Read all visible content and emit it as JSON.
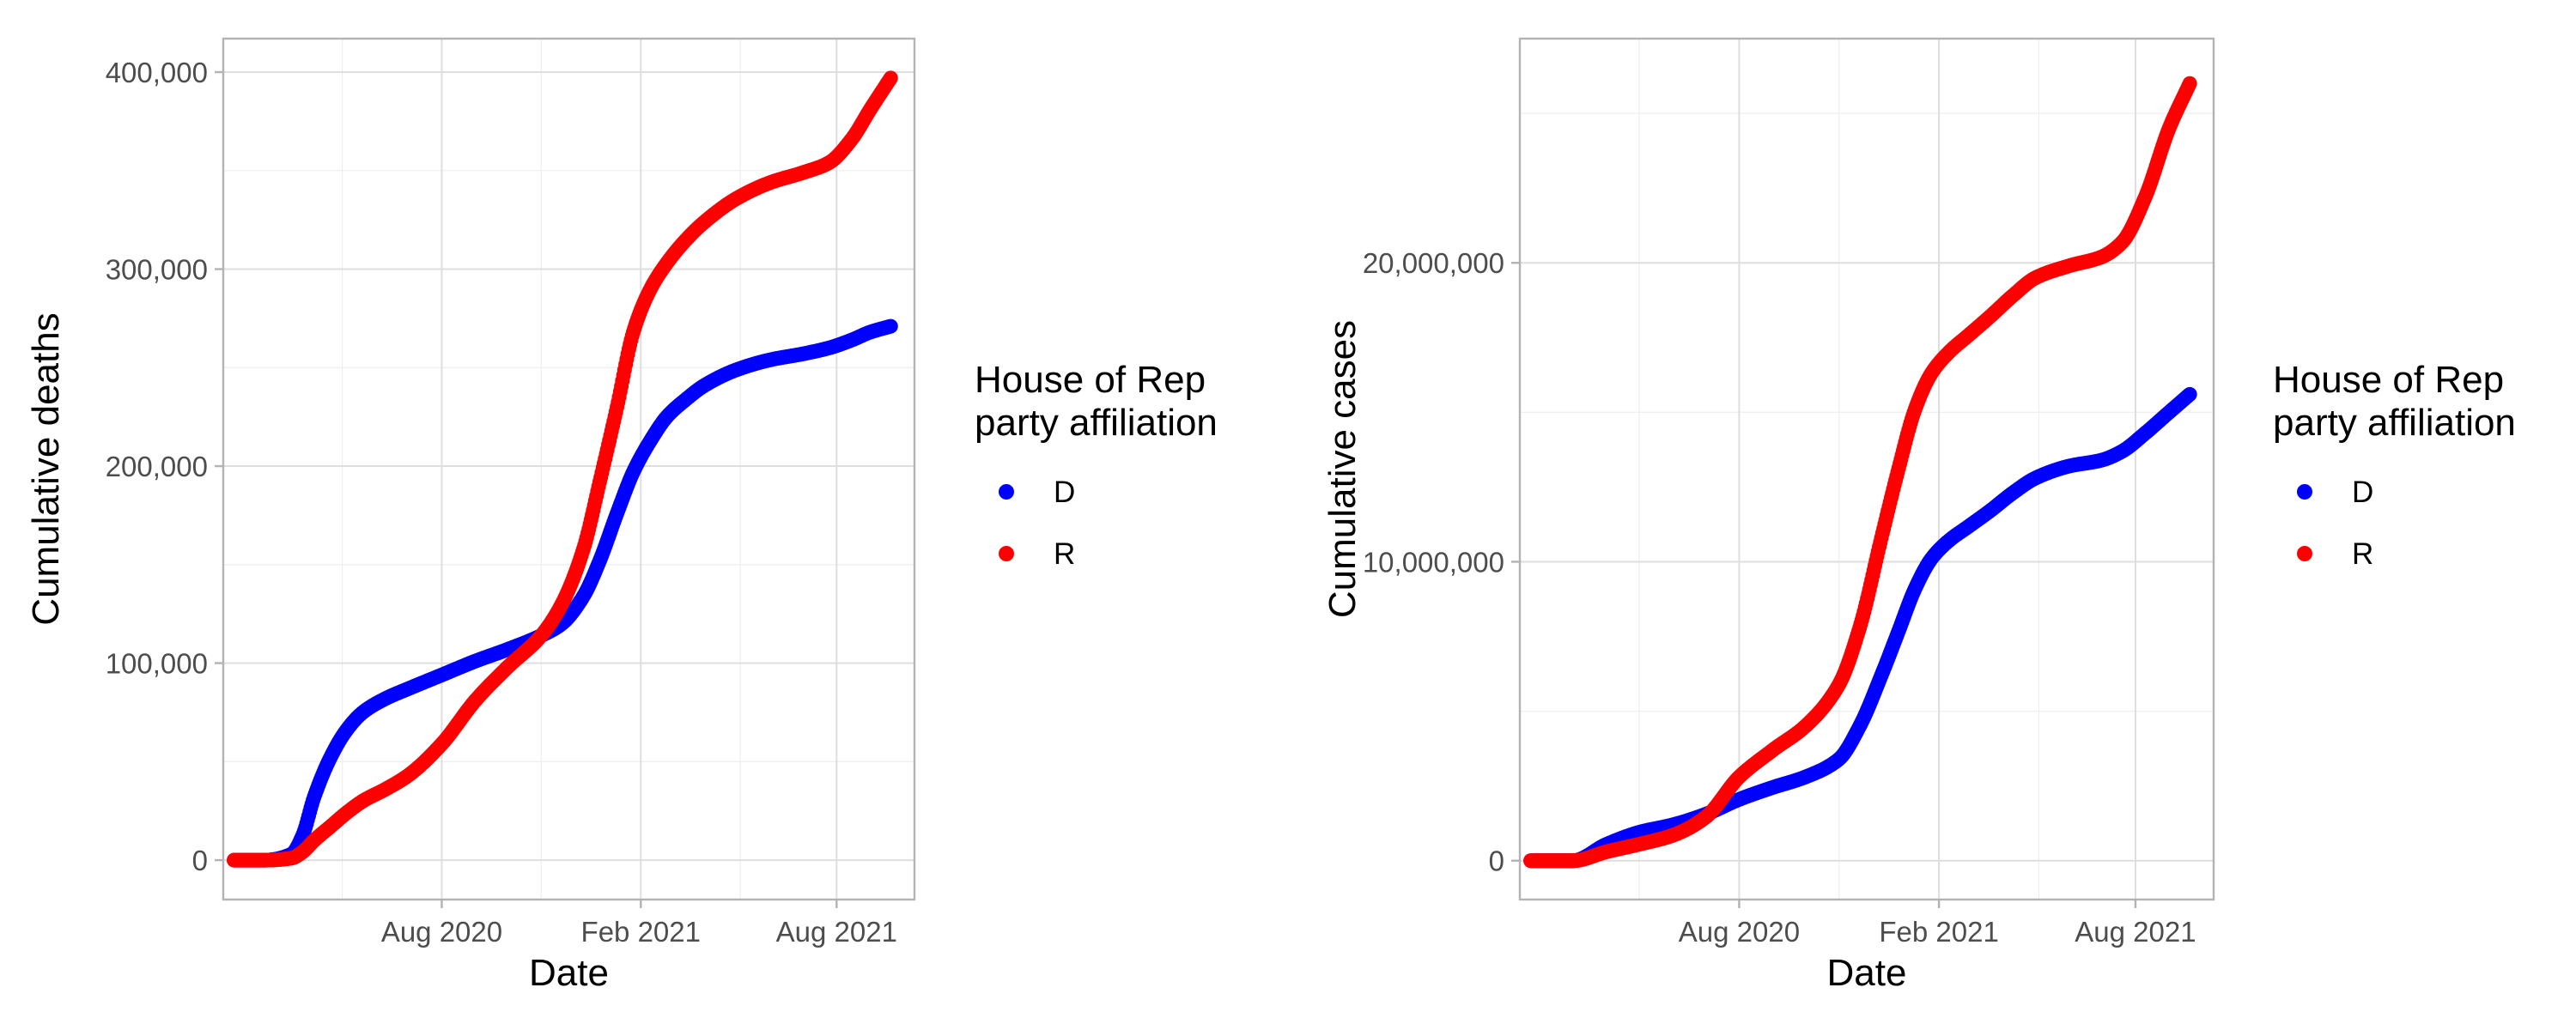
{
  "chart_data": [
    {
      "type": "scatter",
      "panel": "left",
      "xlabel": "Date",
      "ylabel": "Cumulative deaths",
      "xlim": [
        "2020-01-12",
        "2021-10-12"
      ],
      "ylim": [
        -20000,
        417000
      ],
      "x_ticks": [
        {
          "date": "2020-08-01",
          "label": "Aug 2020"
        },
        {
          "date": "2021-02-01",
          "label": "Feb 2021"
        },
        {
          "date": "2021-08-01",
          "label": "Aug 2021"
        }
      ],
      "y_ticks": [
        {
          "value": 0,
          "label": "0"
        },
        {
          "value": 100000,
          "label": "100,000"
        },
        {
          "value": 200000,
          "label": "200,000"
        },
        {
          "value": 300000,
          "label": "300,000"
        },
        {
          "value": 400000,
          "label": "400,000"
        }
      ],
      "legend": {
        "title_lines": [
          "House of Rep",
          "party affiliation"
        ],
        "position": "right"
      },
      "series": [
        {
          "name": "D",
          "color": "#0000ff",
          "x": [
            "2020-01-22",
            "2020-02-20",
            "2020-03-15",
            "2020-03-25",
            "2020-04-05",
            "2020-04-20",
            "2020-05-05",
            "2020-05-20",
            "2020-06-10",
            "2020-07-01",
            "2020-08-01",
            "2020-09-01",
            "2020-10-01",
            "2020-11-01",
            "2020-11-20",
            "2020-12-10",
            "2020-12-25",
            "2021-01-10",
            "2021-01-25",
            "2021-02-10",
            "2021-02-25",
            "2021-03-15",
            "2021-04-01",
            "2021-05-01",
            "2021-06-01",
            "2021-07-01",
            "2021-07-25",
            "2021-08-15",
            "2021-09-01",
            "2021-09-20"
          ],
          "y": [
            0,
            0,
            3000,
            12000,
            32000,
            52000,
            66000,
            75000,
            82000,
            87000,
            94000,
            101000,
            107000,
            114000,
            120000,
            134000,
            152000,
            176000,
            197000,
            213000,
            225000,
            234000,
            241000,
            249000,
            254000,
            257000,
            260000,
            264000,
            268000,
            271000
          ]
        },
        {
          "name": "R",
          "color": "#ff0000",
          "x": [
            "2020-01-22",
            "2020-02-20",
            "2020-03-15",
            "2020-03-25",
            "2020-04-05",
            "2020-04-20",
            "2020-05-05",
            "2020-05-20",
            "2020-06-10",
            "2020-07-01",
            "2020-08-01",
            "2020-09-01",
            "2020-10-01",
            "2020-11-01",
            "2020-11-20",
            "2020-12-10",
            "2020-12-25",
            "2021-01-10",
            "2021-01-25",
            "2021-02-10",
            "2021-02-25",
            "2021-03-15",
            "2021-04-01",
            "2021-05-01",
            "2021-06-01",
            "2021-07-01",
            "2021-07-25",
            "2021-08-15",
            "2021-09-01",
            "2021-09-20"
          ],
          "y": [
            0,
            0,
            1000,
            4000,
            10000,
            17000,
            24000,
            30000,
            36000,
            43000,
            59000,
            81000,
            98000,
            114000,
            130000,
            158000,
            192000,
            230000,
            268000,
            290000,
            303000,
            315000,
            324000,
            336000,
            344000,
            349000,
            354000,
            366000,
            381000,
            397000
          ]
        }
      ]
    },
    {
      "type": "scatter",
      "panel": "right",
      "xlabel": "Date",
      "ylabel": "Cumulative cases",
      "xlim": [
        "2020-01-12",
        "2021-10-12"
      ],
      "ylim": [
        -1300000,
        27500000
      ],
      "x_ticks": [
        {
          "date": "2020-08-01",
          "label": "Aug 2020"
        },
        {
          "date": "2021-02-01",
          "label": "Feb 2021"
        },
        {
          "date": "2021-08-01",
          "label": "Aug 2021"
        }
      ],
      "y_ticks": [
        {
          "value": 0,
          "label": "0"
        },
        {
          "value": 10000000,
          "label": "10,000,000"
        },
        {
          "value": 20000000,
          "label": "20,000,000"
        }
      ],
      "legend": {
        "title_lines": [
          "House of Rep",
          "party affiliation"
        ],
        "position": "right"
      },
      "series": [
        {
          "name": "D",
          "color": "#0000ff",
          "x": [
            "2020-01-22",
            "2020-03-01",
            "2020-04-01",
            "2020-05-01",
            "2020-06-01",
            "2020-07-01",
            "2020-08-01",
            "2020-09-01",
            "2020-10-01",
            "2020-11-01",
            "2020-11-20",
            "2020-12-10",
            "2020-12-25",
            "2021-01-10",
            "2021-01-25",
            "2021-02-10",
            "2021-03-01",
            "2021-03-20",
            "2021-04-10",
            "2021-05-01",
            "2021-06-01",
            "2021-07-01",
            "2021-07-20",
            "2021-08-10",
            "2021-09-01",
            "2021-09-20"
          ],
          "y": [
            0,
            0,
            550000,
            950000,
            1200000,
            1550000,
            2050000,
            2450000,
            2800000,
            3400000,
            4500000,
            6200000,
            7600000,
            9100000,
            10100000,
            10700000,
            11200000,
            11700000,
            12300000,
            12800000,
            13200000,
            13400000,
            13700000,
            14300000,
            15000000,
            15600000
          ]
        },
        {
          "name": "R",
          "color": "#ff0000",
          "x": [
            "2020-01-22",
            "2020-03-01",
            "2020-04-01",
            "2020-05-01",
            "2020-06-01",
            "2020-07-01",
            "2020-08-01",
            "2020-09-01",
            "2020-10-01",
            "2020-11-01",
            "2020-11-20",
            "2020-12-10",
            "2020-12-25",
            "2021-01-10",
            "2021-01-25",
            "2021-02-10",
            "2021-03-01",
            "2021-03-20",
            "2021-04-10",
            "2021-05-01",
            "2021-06-01",
            "2021-07-01",
            "2021-07-20",
            "2021-08-10",
            "2021-09-01",
            "2021-09-20"
          ],
          "y": [
            0,
            0,
            300000,
            550000,
            850000,
            1450000,
            2800000,
            3700000,
            4500000,
            5900000,
            7800000,
            10800000,
            13000000,
            15100000,
            16300000,
            17000000,
            17600000,
            18200000,
            18900000,
            19500000,
            19900000,
            20200000,
            20700000,
            22200000,
            24500000,
            26000000
          ]
        }
      ]
    }
  ]
}
